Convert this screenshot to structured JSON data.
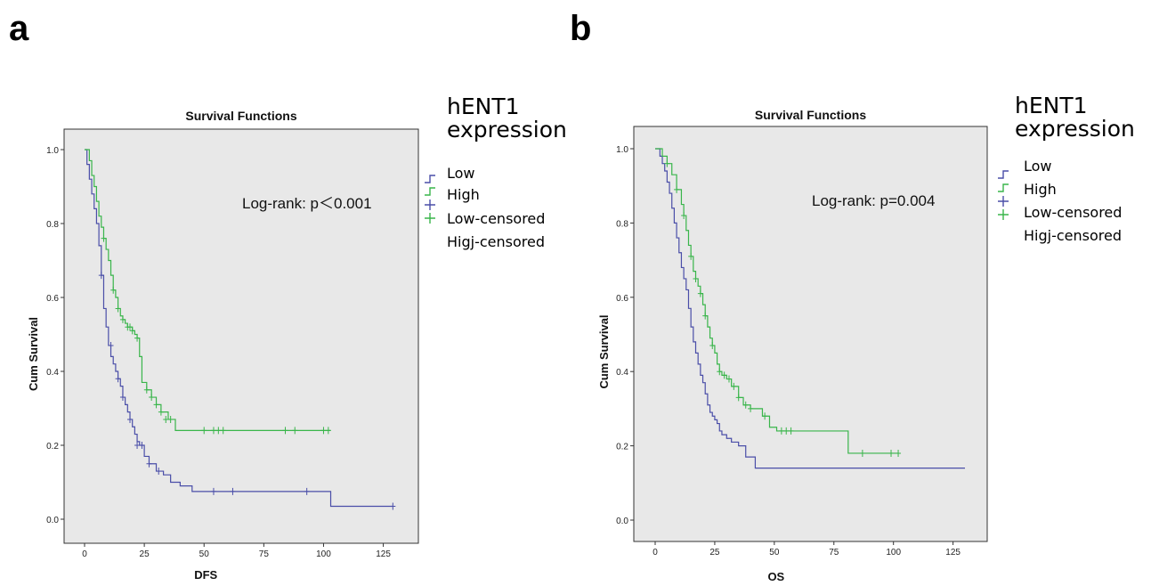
{
  "panels": [
    {
      "letter": "a"
    },
    {
      "letter": "b"
    }
  ],
  "legend": {
    "title_line1": "hENT1",
    "title_line2": "expression",
    "entries": [
      "Low",
      "High",
      "Low-censored",
      "Higj-censored"
    ]
  },
  "colors": {
    "low": "#4a4ea8",
    "high": "#39b54a",
    "plot_bg": "#e8e8e8"
  },
  "chart_data": [
    {
      "type": "line",
      "title": "Survival Functions",
      "xlabel": "DFS",
      "ylabel": "Cum Survival",
      "annotation": "Log-rank: p＜0.001",
      "xlim": [
        0,
        130
      ],
      "ylim": [
        0,
        1
      ],
      "x_ticks": [
        0,
        25,
        50,
        75,
        100,
        125
      ],
      "y_ticks": [
        0.0,
        0.2,
        0.4,
        0.6,
        0.8,
        1.0
      ],
      "y_tick_labels": [
        "0.0",
        "0.2",
        "0.4",
        "0.6",
        "0.8",
        "1.0"
      ],
      "grid": false,
      "series": [
        {
          "name": "Low",
          "x": [
            0,
            1,
            2,
            3,
            4,
            5,
            6,
            7,
            8,
            9,
            10,
            11,
            12,
            13,
            14,
            15,
            16,
            17,
            18,
            19,
            20,
            21,
            22,
            23,
            25,
            27,
            30,
            33,
            36,
            40,
            45,
            103,
            129
          ],
          "y": [
            1.0,
            0.96,
            0.92,
            0.88,
            0.84,
            0.8,
            0.74,
            0.66,
            0.57,
            0.52,
            0.47,
            0.44,
            0.42,
            0.4,
            0.38,
            0.36,
            0.33,
            0.31,
            0.29,
            0.27,
            0.25,
            0.23,
            0.21,
            0.2,
            0.17,
            0.15,
            0.13,
            0.12,
            0.1,
            0.09,
            0.075,
            0.035,
            0.035
          ],
          "censored_x": [
            7,
            11,
            14,
            16,
            19,
            22,
            24,
            27,
            31,
            54,
            62,
            93,
            129
          ],
          "censored_y": [
            0.66,
            0.47,
            0.38,
            0.33,
            0.27,
            0.2,
            0.2,
            0.15,
            0.13,
            0.075,
            0.075,
            0.075,
            0.035
          ]
        },
        {
          "name": "High",
          "x": [
            0,
            2,
            3,
            4,
            5,
            6,
            7,
            8,
            9,
            10,
            11,
            12,
            13,
            14,
            15,
            16,
            17,
            18,
            19,
            20,
            21,
            22,
            23,
            24,
            26,
            28,
            30,
            32,
            35,
            38,
            103
          ],
          "y": [
            1.0,
            0.97,
            0.93,
            0.9,
            0.86,
            0.82,
            0.79,
            0.76,
            0.73,
            0.7,
            0.66,
            0.62,
            0.6,
            0.57,
            0.55,
            0.54,
            0.53,
            0.52,
            0.52,
            0.51,
            0.5,
            0.49,
            0.44,
            0.37,
            0.35,
            0.33,
            0.31,
            0.29,
            0.27,
            0.24,
            0.24
          ],
          "censored_x": [
            8,
            12,
            14,
            16,
            18,
            19,
            20,
            22,
            26,
            28,
            30,
            32,
            34,
            36,
            50,
            54,
            56,
            58,
            84,
            88,
            100,
            102
          ],
          "censored_y": [
            0.76,
            0.62,
            0.57,
            0.54,
            0.52,
            0.52,
            0.51,
            0.49,
            0.35,
            0.33,
            0.31,
            0.29,
            0.27,
            0.27,
            0.24,
            0.24,
            0.24,
            0.24,
            0.24,
            0.24,
            0.24,
            0.24
          ]
        }
      ]
    },
    {
      "type": "line",
      "title": "Survival Functions",
      "xlabel": "OS",
      "ylabel": "Cum Survival",
      "annotation": "Log-rank: p=0.004",
      "xlim": [
        0,
        130
      ],
      "ylim": [
        0,
        1
      ],
      "x_ticks": [
        0,
        25,
        50,
        75,
        100,
        125
      ],
      "y_ticks": [
        0.0,
        0.2,
        0.4,
        0.6,
        0.8,
        1.0
      ],
      "y_tick_labels": [
        "0.0",
        "0.2",
        "0.4",
        "0.6",
        "0.8",
        "1.0"
      ],
      "grid": false,
      "series": [
        {
          "name": "Low",
          "x": [
            0,
            2,
            3,
            4,
            5,
            6,
            7,
            8,
            9,
            10,
            11,
            12,
            13,
            14,
            15,
            16,
            17,
            18,
            19,
            20,
            21,
            22,
            23,
            24,
            25,
            26,
            27,
            28,
            30,
            32,
            35,
            38,
            42,
            45,
            130
          ],
          "y": [
            1.0,
            0.98,
            0.96,
            0.94,
            0.91,
            0.88,
            0.84,
            0.8,
            0.76,
            0.72,
            0.68,
            0.65,
            0.62,
            0.57,
            0.52,
            0.48,
            0.45,
            0.42,
            0.39,
            0.37,
            0.34,
            0.31,
            0.29,
            0.28,
            0.27,
            0.26,
            0.24,
            0.23,
            0.22,
            0.21,
            0.2,
            0.17,
            0.14,
            0.14,
            0.14
          ]
        },
        {
          "name": "High",
          "x": [
            0,
            3,
            5,
            7,
            9,
            11,
            12,
            13,
            14,
            15,
            16,
            17,
            18,
            19,
            20,
            21,
            22,
            23,
            24,
            25,
            26,
            27,
            28,
            30,
            32,
            35,
            37,
            40,
            45,
            48,
            51,
            81,
            102
          ],
          "y": [
            1.0,
            0.98,
            0.96,
            0.93,
            0.89,
            0.85,
            0.82,
            0.78,
            0.74,
            0.71,
            0.67,
            0.65,
            0.63,
            0.61,
            0.58,
            0.55,
            0.52,
            0.49,
            0.47,
            0.45,
            0.42,
            0.4,
            0.39,
            0.38,
            0.36,
            0.33,
            0.31,
            0.3,
            0.28,
            0.25,
            0.24,
            0.18,
            0.18
          ],
          "censored_x": [
            5,
            9,
            12,
            15,
            17,
            19,
            21,
            24,
            27,
            29,
            31,
            33,
            35,
            38,
            40,
            46,
            53,
            55,
            57,
            87,
            99,
            102
          ],
          "censored_y": [
            0.96,
            0.89,
            0.82,
            0.71,
            0.65,
            0.61,
            0.55,
            0.47,
            0.4,
            0.39,
            0.38,
            0.36,
            0.33,
            0.31,
            0.3,
            0.28,
            0.24,
            0.24,
            0.24,
            0.18,
            0.18,
            0.18
          ]
        }
      ]
    }
  ]
}
